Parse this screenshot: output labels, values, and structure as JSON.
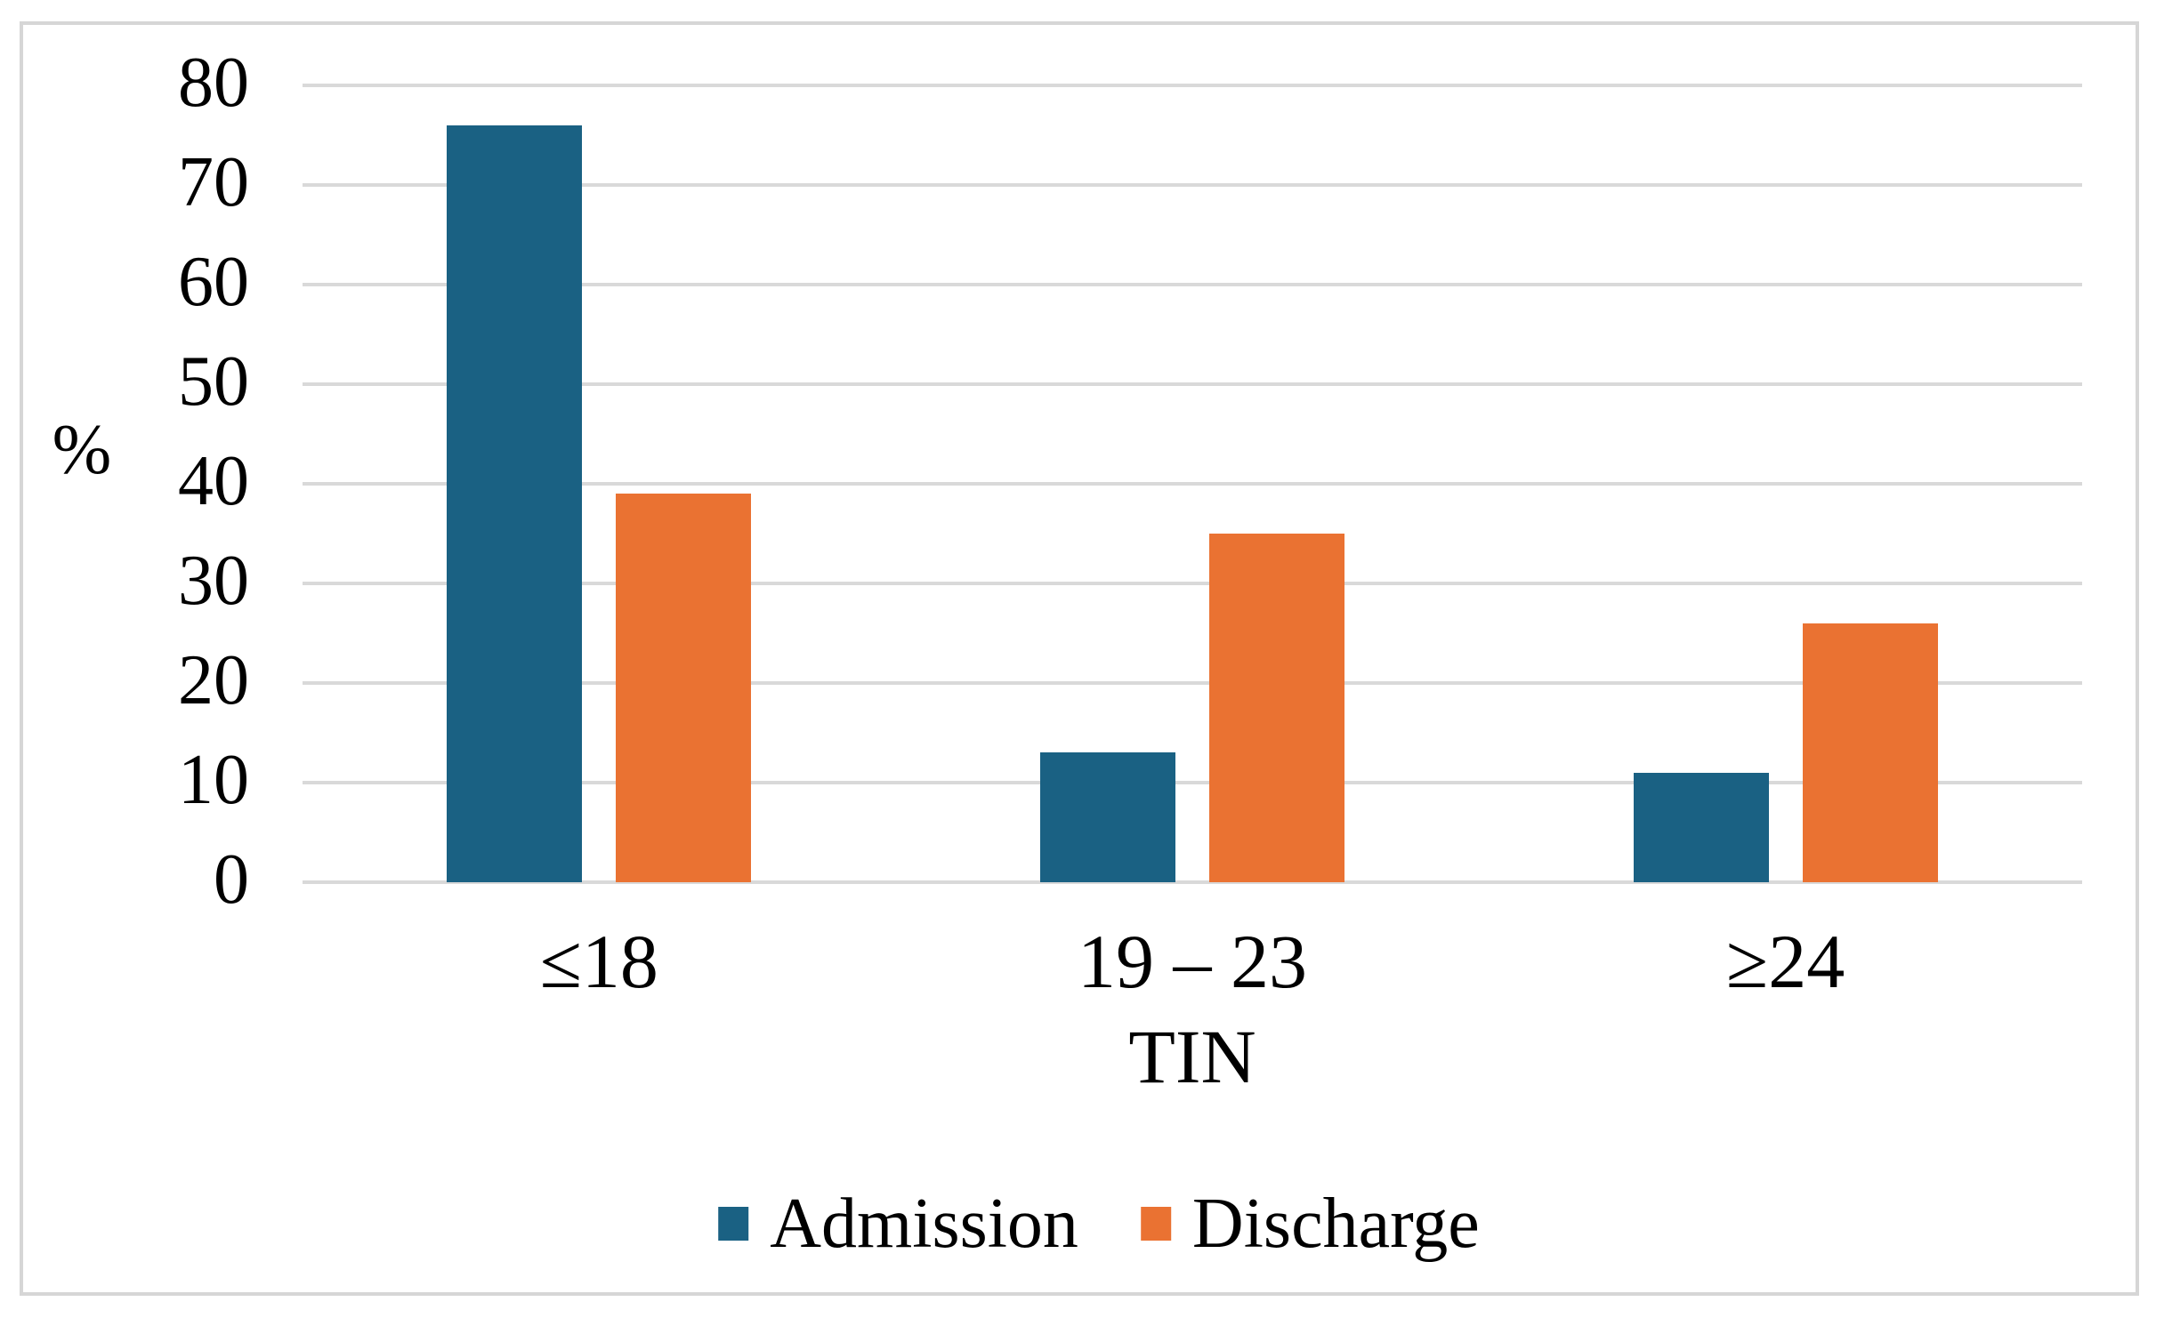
{
  "chart_data": {
    "type": "bar",
    "categories": [
      "≤18",
      "19 – 23",
      "≥24"
    ],
    "series": [
      {
        "name": "Admission",
        "color": "#1A6183",
        "values": [
          76,
          13,
          11
        ]
      },
      {
        "name": "Discharge",
        "color": "#EA7232",
        "values": [
          39,
          35,
          26
        ]
      }
    ],
    "title": "",
    "xlabel": "TIN",
    "ylabel": "%",
    "ylim": [
      0,
      80
    ],
    "yticks": [
      0,
      10,
      20,
      30,
      40,
      50,
      60,
      70,
      80
    ],
    "grid": "horizontal",
    "gridline_color": "#d9d9d9",
    "axis_line_color": "#d9d9d9",
    "border_color": "#d6d6d6",
    "text_color": "#000000",
    "legend_position": "bottom-center"
  }
}
